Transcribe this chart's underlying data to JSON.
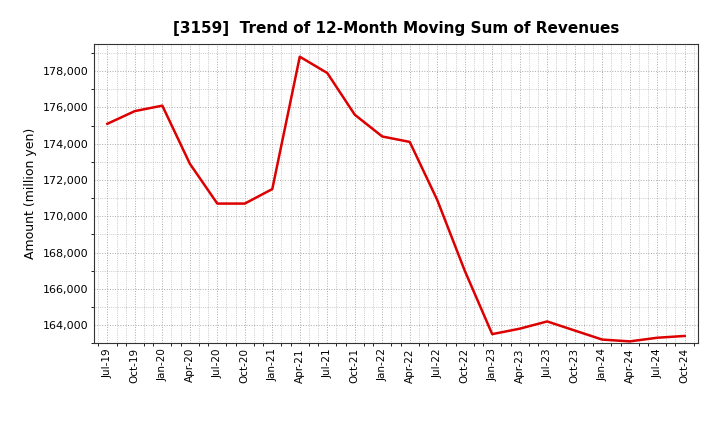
{
  "title": "[3159]  Trend of 12-Month Moving Sum of Revenues",
  "ylabel": "Amount (million yen)",
  "line_color": "#dd0000",
  "line_width": 1.8,
  "background_color": "#ffffff",
  "grid_color": "#aaaaaa",
  "ylim": [
    163000,
    179500
  ],
  "yticks": [
    164000,
    166000,
    168000,
    170000,
    172000,
    174000,
    176000,
    178000
  ],
  "values": [
    175100,
    175800,
    176100,
    172900,
    170700,
    170700,
    171500,
    178800,
    177900,
    175600,
    174400,
    174100,
    170900,
    167000,
    163500,
    163800,
    164200,
    163700,
    163200,
    163100,
    163300,
    163400
  ],
  "xtick_labels": [
    "Jul-19",
    "Oct-19",
    "Jan-20",
    "Apr-20",
    "Jul-20",
    "Oct-20",
    "Jan-21",
    "Apr-21",
    "Jul-21",
    "Oct-21",
    "Jan-22",
    "Apr-22",
    "Jul-22",
    "Oct-22",
    "Jan-23",
    "Apr-23",
    "Jul-23",
    "Oct-23",
    "Jan-24",
    "Apr-24",
    "Jul-24",
    "Oct-24"
  ]
}
